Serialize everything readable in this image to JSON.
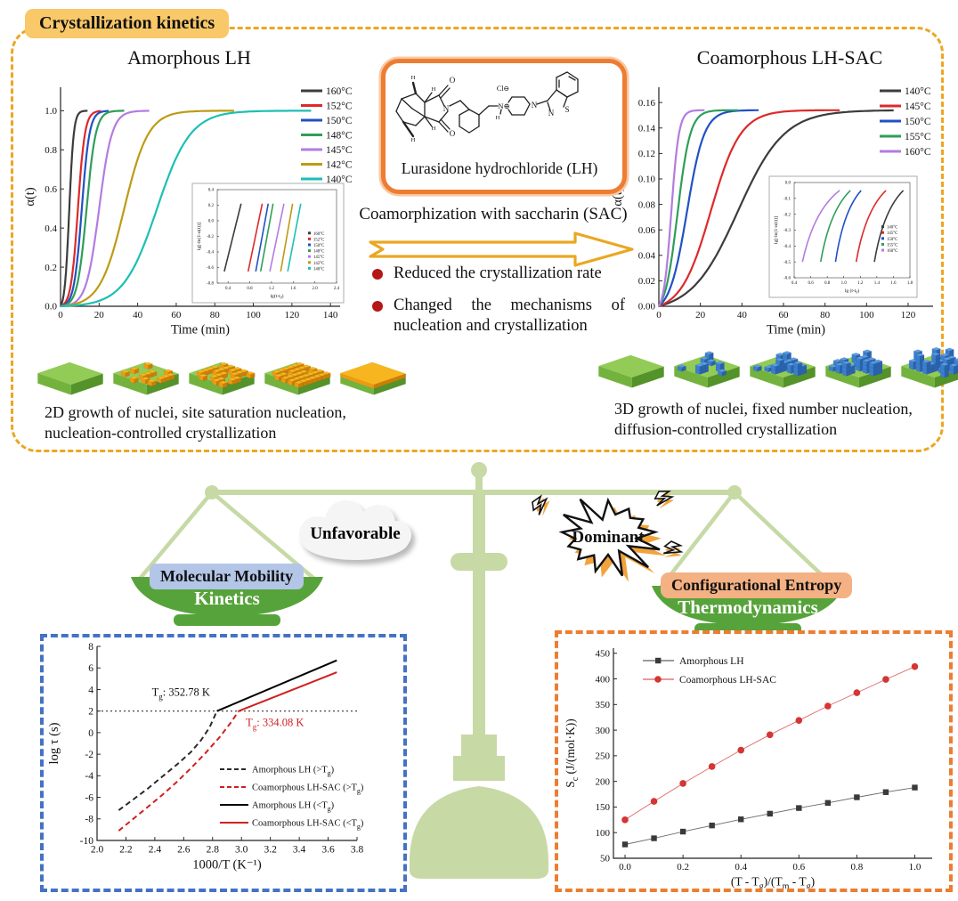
{
  "section_kinetics": {
    "badge": "Crystallization kinetics",
    "left_title": "Amorphous LH",
    "right_title": "Coamorphous LH-SAC",
    "molecule_label": "Lurasidone hydrochloride (LH)",
    "molecule_atom_labels": [
      "H",
      "H",
      "H",
      "H",
      "O",
      "O",
      "N",
      "Cl⊖",
      "N⊕",
      "H",
      "N",
      "N",
      "S"
    ],
    "arrow_label": "Coamorphization with saccharin (SAC)",
    "bullets": [
      "Reduced the crystallization rate",
      "Changed the mechanisms of nucleation and crystallization"
    ],
    "left_caption": "2D growth of nuclei, site saturation nucleation, nucleation-controlled crystallization",
    "right_caption": "3D growth of nuclei, fixed number nucleation, diffusion-controlled crystallization",
    "growth_left": {
      "cube_color": "orange",
      "stages": [
        {
          "cubes": 0,
          "h": 1
        },
        {
          "cubes": 13,
          "h": 1
        },
        {
          "cubes": 24,
          "h": 1
        },
        {
          "cubes": 32,
          "h": 1
        },
        {
          "full": true
        }
      ]
    },
    "growth_right": {
      "cube_color": "blue",
      "stages": [
        {
          "cubes": 0,
          "h": 1
        },
        {
          "cubes": 9,
          "h": 2
        },
        {
          "cubes": 16,
          "h": 3
        },
        {
          "cubes": 22,
          "h": 3
        },
        {
          "cubes": 30,
          "h": 4
        }
      ]
    }
  },
  "balance": {
    "left_tag": "Unfavorable",
    "right_tag": "Dominant",
    "left_box": "Molecular Mobility",
    "right_box": "Configurational Entropy",
    "left_pan": "Kinetics",
    "right_pan": "Thermodynamics"
  },
  "colors": {
    "accent_gold": "#eaa722",
    "badge_bg": "#f8c869",
    "molecule_border": "#ee7d33",
    "bullet_red": "#b51616",
    "balance_light_green": "#c7d9a5",
    "pan_green": "#57a33b",
    "mobility_bg": "#b3c6e7",
    "entropy_bg": "#f4b183",
    "kinetics_border": "#4472c4",
    "thermo_border": "#ed7d31"
  },
  "chart_data": [
    {
      "id": "chart-amorphous-lh",
      "type": "line",
      "title": "Amorphous LH",
      "xlabel": "Time (min)",
      "ylabel": "α(t)",
      "xlim": [
        0,
        145
      ],
      "ylim": [
        0,
        1.12
      ],
      "xticks": [
        0,
        20,
        40,
        60,
        80,
        100,
        120,
        140
      ],
      "yticks": [
        0.0,
        0.2,
        0.4,
        0.6,
        0.8,
        1.0
      ],
      "series": [
        {
          "name": "160°C",
          "color": "#3c3c3c",
          "t50": 4.5,
          "k": 0.85,
          "plateau": 1.0,
          "tmax": 14
        },
        {
          "name": "152°C",
          "color": "#dc2a2a",
          "t50": 9.0,
          "k": 0.55,
          "plateau": 1.0,
          "tmax": 21
        },
        {
          "name": "150°C",
          "color": "#2151c3",
          "t50": 11.0,
          "k": 0.5,
          "plateau": 1.0,
          "tmax": 25
        },
        {
          "name": "148°C",
          "color": "#2f9e59",
          "t50": 13.5,
          "k": 0.42,
          "plateau": 1.0,
          "tmax": 33
        },
        {
          "name": "145°C",
          "color": "#b37ce0",
          "t50": 20.0,
          "k": 0.3,
          "plateau": 1.0,
          "tmax": 46
        },
        {
          "name": "142°C",
          "color": "#bd9b15",
          "t50": 33.0,
          "k": 0.16,
          "plateau": 1.0,
          "tmax": 90
        },
        {
          "name": "140°C",
          "color": "#1cbfb4",
          "t50": 50.0,
          "k": 0.115,
          "plateau": 1.0,
          "tmax": 130
        }
      ],
      "inset": {
        "xlabel": "lg(t-t_0)",
        "ylabel": "lg[-ln(1-α(t))]",
        "xlim": [
          0.2,
          2.4
        ],
        "ylim": [
          -0.8,
          0.4
        ],
        "xticks": [
          0.4,
          0.8,
          1.2,
          1.6,
          2.0,
          2.4
        ],
        "yticks": [
          0.4,
          0.2,
          0.0,
          -0.2,
          -0.4,
          -0.6,
          -0.8
        ],
        "y1": -0.65,
        "y2": 0.22,
        "lines": [
          {
            "name": "160°C",
            "x1": 0.33,
            "x2": 0.64
          },
          {
            "name": "152°C",
            "x1": 0.77,
            "x2": 1.03
          },
          {
            "name": "150°C",
            "x1": 0.91,
            "x2": 1.14
          },
          {
            "name": "148°C",
            "x1": 1.0,
            "x2": 1.23
          },
          {
            "name": "145°C",
            "x1": 1.17,
            "x2": 1.43
          },
          {
            "name": "142°C",
            "x1": 1.37,
            "x2": 1.59
          },
          {
            "name": "140°C",
            "x1": 1.5,
            "x2": 1.74
          }
        ],
        "legend": [
          "160°C",
          "152°C",
          "150°C",
          "148°C",
          "145°C",
          "142°C",
          "140°C"
        ]
      }
    },
    {
      "id": "chart-coamorphous",
      "type": "line",
      "title": "Coamorphous LH-SAC",
      "xlabel": "Time (min)",
      "ylabel": "α(t)",
      "xlim": [
        0,
        132
      ],
      "ylim": [
        0,
        0.172
      ],
      "xticks": [
        0,
        20,
        40,
        60,
        80,
        100,
        120
      ],
      "yticks": [
        0.0,
        0.02,
        0.04,
        0.06,
        0.08,
        0.1,
        0.12,
        0.14,
        0.16
      ],
      "series": [
        {
          "name": "140°C",
          "color": "#3c3c3c",
          "t50": 38.0,
          "k": 0.09,
          "plateau": 0.154,
          "tmax": 113
        },
        {
          "name": "145°C",
          "color": "#dc2a2a",
          "t50": 25.0,
          "k": 0.14,
          "plateau": 0.154,
          "tmax": 87
        },
        {
          "name": "150°C",
          "color": "#2151c3",
          "t50": 13.5,
          "k": 0.24,
          "plateau": 0.154,
          "tmax": 48
        },
        {
          "name": "155°C",
          "color": "#2f9e59",
          "t50": 9.0,
          "k": 0.33,
          "plateau": 0.154,
          "tmax": 38
        },
        {
          "name": "160°C",
          "color": "#b37ce0",
          "t50": 6.0,
          "k": 0.55,
          "plateau": 0.154,
          "tmax": 22
        }
      ],
      "inset": {
        "xlabel": "lg (t-t_0)",
        "ylabel": "lg[-ln(1-α(t))]",
        "xlim": [
          0.4,
          1.8
        ],
        "ylim": [
          -0.6,
          0.0
        ],
        "xticks": [
          0.4,
          0.6,
          0.8,
          1.0,
          1.2,
          1.4,
          1.6,
          1.8
        ],
        "yticks": [
          0.0,
          -0.1,
          -0.2,
          -0.3,
          -0.4,
          -0.5,
          -0.6
        ],
        "y1": -0.5,
        "y2": -0.05,
        "curves": [
          {
            "name": "160°C",
            "x1": 0.5,
            "x2": 0.95
          },
          {
            "name": "155°C",
            "x1": 0.72,
            "x2": 1.08
          },
          {
            "name": "150°C",
            "x1": 0.9,
            "x2": 1.21
          },
          {
            "name": "145°C",
            "x1": 1.15,
            "x2": 1.51
          },
          {
            "name": "140°C",
            "x1": 1.37,
            "x2": 1.72
          }
        ],
        "legend": [
          "140°C",
          "145°C",
          "150°C",
          "155°C",
          "160°C"
        ]
      }
    },
    {
      "id": "chart-relaxation",
      "type": "line",
      "xlabel": "1000/T (K⁻¹)",
      "ylabel": "log τ (s)",
      "xlim": [
        2.0,
        3.8
      ],
      "ylim": [
        -10,
        8
      ],
      "xticks": [
        2.0,
        2.2,
        2.4,
        2.6,
        2.8,
        3.0,
        3.2,
        3.4,
        3.6,
        3.8
      ],
      "yticks": [
        8,
        6,
        4,
        2,
        0,
        -2,
        -4,
        -6,
        -8,
        -10
      ],
      "hline": 2,
      "annotations": [
        {
          "text": "T_g: 352.78 K",
          "color": "#111111",
          "x": 2.38,
          "y": 3.4
        },
        {
          "text": "T_g: 334.08 K",
          "color": "#d02020",
          "x": 3.03,
          "y": 0.6
        }
      ],
      "series": [
        {
          "name": "Amorphous LH (>T_g)",
          "style": "dashed",
          "color": "#2b2b2b",
          "points": [
            [
              2.15,
              -7.2
            ],
            [
              2.25,
              -6.2
            ],
            [
              2.35,
              -5.2
            ],
            [
              2.45,
              -4.1
            ],
            [
              2.55,
              -3.0
            ],
            [
              2.65,
              -1.8
            ],
            [
              2.72,
              -0.7
            ],
            [
              2.78,
              0.5
            ],
            [
              2.83,
              2.0
            ]
          ]
        },
        {
          "name": "Coamorphous LH-SAC (>T_g)",
          "style": "dashed",
          "color": "#d02020",
          "points": [
            [
              2.15,
              -9.1
            ],
            [
              2.25,
              -8.0
            ],
            [
              2.35,
              -6.9
            ],
            [
              2.45,
              -5.8
            ],
            [
              2.55,
              -4.6
            ],
            [
              2.65,
              -3.3
            ],
            [
              2.75,
              -1.9
            ],
            [
              2.85,
              -0.4
            ],
            [
              2.93,
              1.0
            ],
            [
              2.98,
              2.0
            ]
          ]
        },
        {
          "name": "Amorphous LH (<T_g)",
          "style": "solid",
          "color": "#000000",
          "points": [
            [
              2.83,
              2.0
            ],
            [
              3.66,
              6.7
            ]
          ]
        },
        {
          "name": "Coamorphous LH-SAC (<T_g)",
          "style": "solid",
          "color": "#d02020",
          "points": [
            [
              2.98,
              2.0
            ],
            [
              3.66,
              5.6
            ]
          ]
        }
      ]
    },
    {
      "id": "chart-entropy",
      "type": "scatter-line",
      "xlabel": "(T - T_g)/(T_m - T_g)",
      "ylabel": "S_c (J/(mol·K))",
      "xlim": [
        -0.04,
        1.06
      ],
      "ylim": [
        50,
        460
      ],
      "xticks": [
        0.0,
        0.2,
        0.4,
        0.6,
        0.8,
        1.0
      ],
      "yticks": [
        50,
        100,
        150,
        200,
        250,
        300,
        350,
        400,
        450
      ],
      "x": [
        0.0,
        0.1,
        0.2,
        0.3,
        0.4,
        0.5,
        0.6,
        0.7,
        0.8,
        0.9,
        1.0
      ],
      "series": [
        {
          "name": "Amorphous LH",
          "marker": "square",
          "color": "#3a3a3a",
          "values": [
            77,
            89,
            102,
            114,
            126,
            137,
            148,
            158,
            169,
            179,
            188
          ]
        },
        {
          "name": "Coamorphous LH-SAC",
          "marker": "circle",
          "color": "#d43535",
          "values": [
            125,
            161,
            196,
            229,
            261,
            291,
            319,
            347,
            373,
            399,
            424
          ]
        }
      ]
    }
  ]
}
